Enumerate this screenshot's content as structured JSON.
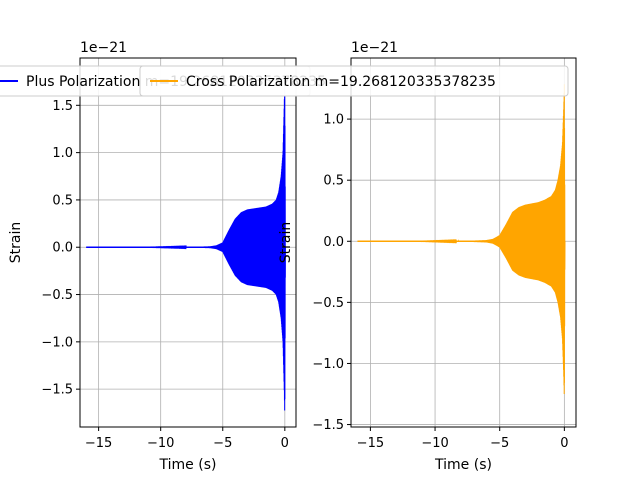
{
  "chart_data": [
    {
      "type": "line",
      "xlabel": "Time (s)",
      "ylabel": "Strain",
      "y_offset_text": "1e−21",
      "xlim": [
        -16.5,
        0.9
      ],
      "ylim": [
        -1.9,
        2.0
      ],
      "xticks": [
        -15,
        -10,
        -5,
        0
      ],
      "xtick_labels": [
        "−15",
        "−10",
        "−5",
        "0"
      ],
      "yticks": [
        -1.5,
        -1.0,
        -0.5,
        0.0,
        0.5,
        1.0,
        1.5
      ],
      "ytick_labels": [
        "−1.5",
        "−1.0",
        "−0.5",
        "0.0",
        "0.5",
        "1.0",
        "1.5"
      ],
      "grid": true,
      "legend_placement": "top-center",
      "series": [
        {
          "name": "Plus Polarization m=19.268120335378235",
          "color": "#0000ff",
          "x": [
            -16,
            -12,
            -8,
            -6,
            -5.5,
            -5,
            -4.5,
            -4,
            -3.5,
            -3,
            -2.5,
            -2,
            -1.5,
            -1,
            -0.7,
            -0.5,
            -0.3,
            -0.15,
            -0.05,
            0,
            0.05
          ],
          "envelope": [
            0.0,
            0.0,
            0.002,
            0.01,
            0.02,
            0.05,
            0.18,
            0.3,
            0.37,
            0.4,
            0.41,
            0.42,
            0.43,
            0.46,
            0.5,
            0.58,
            0.75,
            1.0,
            1.5,
            1.8,
            0.0
          ]
        }
      ]
    },
    {
      "type": "line",
      "xlabel": "Time (s)",
      "ylabel": "Strain",
      "y_offset_text": "1e−21",
      "xlim": [
        -16.5,
        0.9
      ],
      "ylim": [
        -1.52,
        1.5
      ],
      "xticks": [
        -15,
        -10,
        -5,
        0
      ],
      "xtick_labels": [
        "−15",
        "−10",
        "−5",
        "0"
      ],
      "yticks": [
        -1.5,
        -1.0,
        -0.5,
        0.0,
        0.5,
        1.0
      ],
      "ytick_labels": [
        "−1.5",
        "−1.0",
        "−0.5",
        "0.0",
        "0.5",
        "1.0"
      ],
      "grid": true,
      "legend_placement": "top-center",
      "series": [
        {
          "name": "Cross Polarization m=19.268120335378235",
          "color": "#ffa500",
          "x": [
            -16,
            -12,
            -8,
            -6,
            -5.5,
            -5,
            -4.5,
            -4,
            -3.5,
            -3,
            -2.5,
            -2,
            -1.5,
            -1,
            -0.7,
            -0.5,
            -0.3,
            -0.15,
            -0.05,
            0,
            0.05
          ],
          "envelope": [
            0.0,
            0.0,
            0.002,
            0.01,
            0.02,
            0.05,
            0.14,
            0.24,
            0.28,
            0.3,
            0.31,
            0.32,
            0.34,
            0.37,
            0.42,
            0.5,
            0.62,
            0.8,
            1.1,
            1.3,
            0.0
          ]
        }
      ]
    }
  ]
}
